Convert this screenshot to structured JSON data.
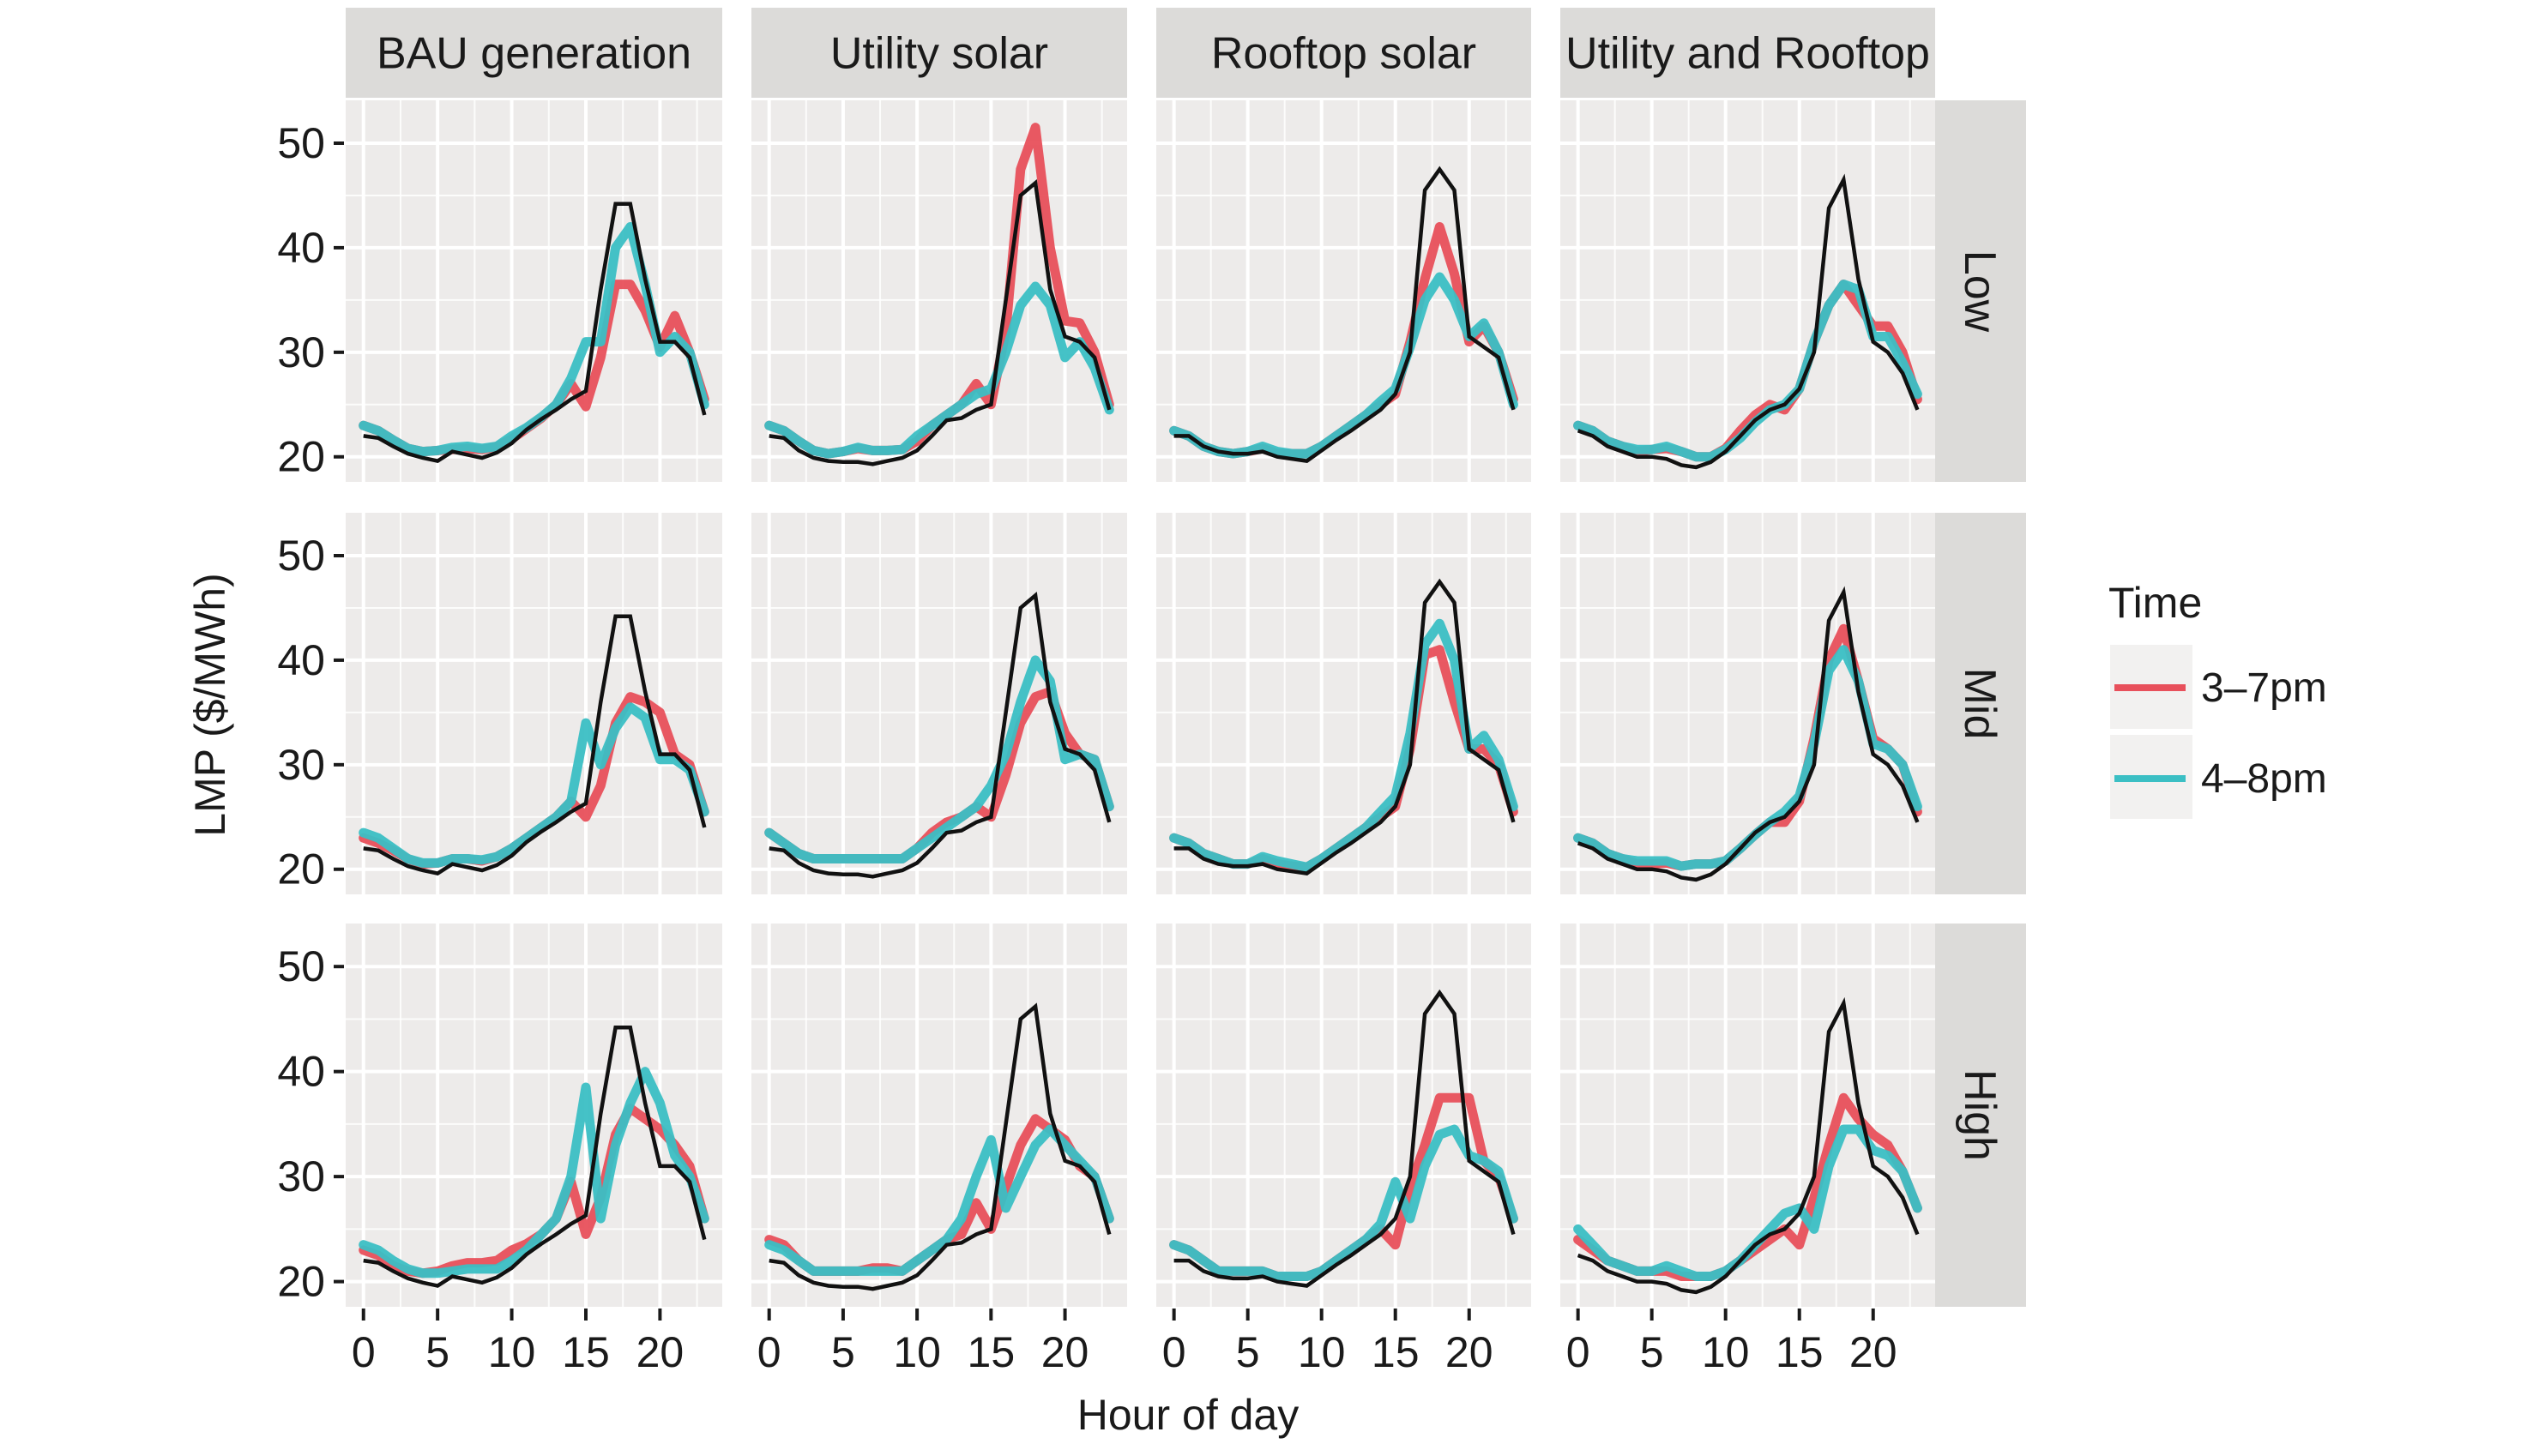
{
  "chart_data": {
    "type": "line",
    "layout": "facet-grid",
    "xlabel": "Hour of day",
    "ylabel": "LMP ($/MWh)",
    "x_ticks": [
      0,
      5,
      10,
      15,
      20
    ],
    "y_ticks": [
      20,
      30,
      40,
      50
    ],
    "xlim": [
      -1.2,
      24.2
    ],
    "ylim": [
      17.6,
      54.1
    ],
    "grid": true,
    "columns": [
      "BAU generation",
      "Utility solar",
      "Rooftop solar",
      "Utility and Rooftop"
    ],
    "rows": [
      "Low",
      "Mid",
      "High"
    ],
    "x": [
      0,
      1,
      2,
      3,
      4,
      5,
      6,
      7,
      8,
      9,
      10,
      11,
      12,
      13,
      14,
      15,
      16,
      17,
      18,
      19,
      20,
      21,
      22,
      23
    ],
    "legend": {
      "title": "Time",
      "position": "right",
      "entries": [
        {
          "label": "3–7pm",
          "color": "#E8505B"
        },
        {
          "label": "4–8pm",
          "color": "#3BBFC4"
        }
      ]
    },
    "baseline_color": "#111111",
    "baselines": {
      "BAU generation": [
        22,
        21.8,
        21,
        20.3,
        19.9,
        19.6,
        20.5,
        20.2,
        19.9,
        20.4,
        21.3,
        22.6,
        23.6,
        24.5,
        25.5,
        26.3,
        36,
        44.2,
        44.2,
        37,
        31,
        31,
        29.5,
        24
      ],
      "Utility solar": [
        22,
        21.8,
        20.6,
        19.9,
        19.6,
        19.5,
        19.5,
        19.3,
        19.6,
        19.9,
        20.6,
        22,
        23.5,
        23.7,
        24.5,
        25,
        35,
        45,
        46.2,
        36,
        31.5,
        31,
        29.5,
        24.5
      ],
      "Rooftop solar": [
        22,
        22,
        21,
        20.5,
        20.3,
        20.3,
        20.5,
        20,
        19.8,
        19.6,
        20.6,
        21.6,
        22.5,
        23.5,
        24.5,
        26,
        30,
        45.5,
        47.5,
        45.5,
        31.5,
        30.5,
        29.5,
        24.5
      ],
      "Utility and Rooftop": [
        22.5,
        22,
        21,
        20.5,
        20,
        20,
        19.8,
        19.2,
        19,
        19.5,
        20.5,
        22,
        23.5,
        24.5,
        25,
        26.5,
        30,
        43.8,
        46.5,
        37,
        31,
        30,
        28,
        24.5
      ]
    },
    "panels": [
      {
        "row": "Low",
        "col": "BAU generation",
        "series": [
          {
            "name": "3–7pm",
            "values": [
              23,
              22.5,
              21.6,
              20.8,
              20.5,
              20.6,
              20.7,
              20.8,
              20.7,
              21,
              21.7,
              22.7,
              23.7,
              25,
              27,
              24.8,
              29.5,
              36.5,
              36.5,
              34,
              30.5,
              33.5,
              30,
              25.5
            ]
          },
          {
            "name": "4–8pm",
            "values": [
              23,
              22.5,
              21.6,
              20.8,
              20.5,
              20.6,
              20.9,
              21,
              20.8,
              21,
              22,
              22.8,
              23.8,
              25,
              27.5,
              31,
              31,
              40,
              42,
              36.5,
              30,
              31.5,
              30,
              25
            ]
          }
        ]
      },
      {
        "row": "Low",
        "col": "Utility solar",
        "series": [
          {
            "name": "3–7pm",
            "values": [
              23,
              22.5,
              21.5,
              20.6,
              20.3,
              20.5,
              20.8,
              20.6,
              20.6,
              20.7,
              21.5,
              23,
              24,
              25,
              27,
              25,
              32,
              47.5,
              51.5,
              40,
              33,
              32.8,
              30,
              25
            ]
          },
          {
            "name": "4–8pm",
            "values": [
              23,
              22.5,
              21.5,
              20.6,
              20.3,
              20.5,
              20.9,
              20.6,
              20.6,
              20.7,
              22,
              23,
              24,
              25,
              26,
              26.5,
              30,
              34.5,
              36.3,
              34.5,
              29.5,
              31,
              28.5,
              24.5
            ]
          }
        ]
      },
      {
        "row": "Low",
        "col": "Rooftop solar",
        "series": [
          {
            "name": "3–7pm",
            "values": [
              22.5,
              22,
              21,
              20.5,
              20.3,
              20.5,
              20.8,
              20.3,
              20.3,
              20.3,
              21,
              22,
              23,
              24,
              25,
              26,
              31,
              37,
              42,
              37.5,
              31,
              32.5,
              30,
              25.5
            ]
          },
          {
            "name": "4–8pm",
            "values": [
              22.5,
              22,
              21,
              20.5,
              20.3,
              20.5,
              21,
              20.5,
              20.3,
              20.3,
              21,
              22,
              23,
              24,
              25.3,
              26.5,
              30.5,
              35,
              37.2,
              35,
              31.5,
              32.8,
              30,
              25
            ]
          }
        ]
      },
      {
        "row": "Low",
        "col": "Utility and Rooftop",
        "series": [
          {
            "name": "3–7pm",
            "values": [
              23,
              22.5,
              21.5,
              21,
              20.5,
              20.7,
              20.8,
              20.5,
              20,
              20,
              20.8,
              22.5,
              24,
              25,
              24.5,
              26.5,
              31,
              34.5,
              36.5,
              34.5,
              32.5,
              32.5,
              30,
              25.5
            ]
          },
          {
            "name": "4–8pm",
            "values": [
              23,
              22.5,
              21.5,
              21,
              20.7,
              20.7,
              21,
              20.5,
              20,
              20,
              20.7,
              21.8,
              23.3,
              24.5,
              25,
              26.5,
              31,
              34.5,
              36.5,
              36,
              31.5,
              31.5,
              29,
              26
            ]
          }
        ]
      },
      {
        "row": "Mid",
        "col": "BAU generation",
        "series": [
          {
            "name": "3–7pm",
            "values": [
              23,
              22.5,
              21.8,
              21,
              20.5,
              20.6,
              21,
              21,
              20.8,
              21.2,
              22,
              23,
              24,
              25,
              26.5,
              25,
              28,
              34,
              36.5,
              36,
              35,
              31,
              30,
              25.5
            ]
          },
          {
            "name": "4–8pm",
            "values": [
              23.5,
              23,
              22,
              21,
              20.6,
              20.6,
              21,
              21,
              20.9,
              21.2,
              22,
              23,
              24,
              25,
              26.5,
              34,
              30,
              33.5,
              35.5,
              34.5,
              30.5,
              30.5,
              29.5,
              25.5
            ]
          }
        ]
      },
      {
        "row": "Mid",
        "col": "Utility solar",
        "series": [
          {
            "name": "3–7pm",
            "values": [
              23.5,
              22.5,
              21.5,
              21,
              21,
              21,
              21,
              21,
              21,
              21,
              22,
              23.5,
              24.5,
              25,
              26,
              25,
              29,
              34,
              36.5,
              37,
              33,
              31,
              30.5,
              26
            ]
          },
          {
            "name": "4–8pm",
            "values": [
              23.5,
              22.5,
              21.5,
              21,
              21,
              21,
              21,
              21,
              21,
              21,
              22,
              23,
              24,
              25,
              26,
              28,
              31,
              36,
              40,
              38,
              30.5,
              31,
              30.5,
              26
            ]
          }
        ]
      },
      {
        "row": "Mid",
        "col": "Rooftop solar",
        "series": [
          {
            "name": "3–7pm",
            "values": [
              23,
              22.5,
              21.5,
              21,
              20.5,
              20.5,
              21,
              20.5,
              20.3,
              20.2,
              21,
              22,
              23,
              24,
              25,
              26,
              31.5,
              40.5,
              41,
              36,
              31.5,
              31.5,
              30,
              25.5
            ]
          },
          {
            "name": "4–8pm",
            "values": [
              23,
              22.5,
              21.5,
              21,
              20.5,
              20.5,
              21.2,
              20.8,
              20.5,
              20.2,
              21,
              22,
              23,
              24,
              25.5,
              27,
              33,
              41.5,
              43.5,
              40,
              31.5,
              32.8,
              30.5,
              26
            ]
          }
        ]
      },
      {
        "row": "Mid",
        "col": "Utility and Rooftop",
        "series": [
          {
            "name": "3–7pm",
            "values": [
              23,
              22.5,
              21.5,
              21,
              20.5,
              20.5,
              20.6,
              20.3,
              20.5,
              20.5,
              20.8,
              22,
              23.3,
              24.5,
              24.5,
              26.5,
              32.5,
              40,
              43,
              38,
              32.5,
              31.5,
              30,
              25.5
            ]
          },
          {
            "name": "4–8pm",
            "values": [
              23,
              22.5,
              21.5,
              21,
              20.8,
              20.8,
              20.8,
              20.3,
              20.5,
              20.5,
              20.8,
              22,
              23.3,
              24.5,
              25.5,
              27,
              32,
              39,
              41,
              38,
              32,
              31.5,
              30,
              26
            ]
          }
        ]
      },
      {
        "row": "High",
        "col": "BAU generation",
        "series": [
          {
            "name": "3–7pm",
            "values": [
              23,
              22.5,
              21.5,
              21,
              20.8,
              21,
              21.5,
              21.8,
              21.8,
              22,
              23,
              23.6,
              24.5,
              26,
              29.5,
              24.5,
              28,
              34,
              36.5,
              35.5,
              34.5,
              33,
              31,
              26
            ]
          },
          {
            "name": "4–8pm",
            "values": [
              23.5,
              23,
              22,
              21.2,
              20.8,
              20.8,
              21,
              21.2,
              21.2,
              21.2,
              22,
              23,
              24.5,
              26,
              30,
              38.5,
              26,
              33,
              37,
              40,
              37,
              32,
              30,
              26
            ]
          }
        ]
      },
      {
        "row": "High",
        "col": "Utility solar",
        "series": [
          {
            "name": "3–7pm",
            "values": [
              24,
              23.5,
              22,
              21,
              21,
              21,
              21,
              21.3,
              21.3,
              21,
              22,
              23,
              24,
              24.5,
              27.5,
              25,
              29,
              33,
              35.5,
              34.5,
              33.5,
              31,
              30,
              26
            ]
          },
          {
            "name": "4–8pm",
            "values": [
              23.5,
              23,
              22,
              21,
              21,
              21,
              21,
              21,
              21,
              21,
              22,
              23,
              24,
              26,
              30,
              33.5,
              27,
              30,
              33,
              34.5,
              33,
              31.5,
              30,
              26
            ]
          }
        ]
      },
      {
        "row": "High",
        "col": "Rooftop solar",
        "series": [
          {
            "name": "3–7pm",
            "values": [
              23.5,
              23,
              22,
              21,
              21,
              21,
              21,
              20.5,
              20.5,
              20.5,
              21,
              22,
              23,
              24,
              25,
              23.5,
              29,
              33,
              37.5,
              37.5,
              37.5,
              31.5,
              30,
              26
            ]
          },
          {
            "name": "4–8pm",
            "values": [
              23.5,
              23,
              22,
              21,
              21,
              21,
              21,
              20.5,
              20.5,
              20.5,
              21,
              22,
              23,
              24,
              25.5,
              29.5,
              26,
              31,
              34,
              34.5,
              32,
              31.5,
              30.5,
              26
            ]
          }
        ]
      },
      {
        "row": "High",
        "col": "Utility and Rooftop",
        "series": [
          {
            "name": "3–7pm",
            "values": [
              24,
              23,
              22,
              21.5,
              21,
              21,
              21,
              20.5,
              20.5,
              20.5,
              21,
              22,
              23,
              24,
              25,
              23.5,
              28,
              33,
              37.5,
              35.5,
              34,
              33,
              30.5,
              27
            ]
          },
          {
            "name": "4–8pm",
            "values": [
              25,
              23.5,
              22,
              21.5,
              21,
              21,
              21.5,
              21,
              20.5,
              20.5,
              21,
              22,
              23.5,
              25,
              26.5,
              27,
              25,
              31,
              34.5,
              34.5,
              32.5,
              32,
              30.5,
              27
            ]
          }
        ]
      }
    ]
  }
}
